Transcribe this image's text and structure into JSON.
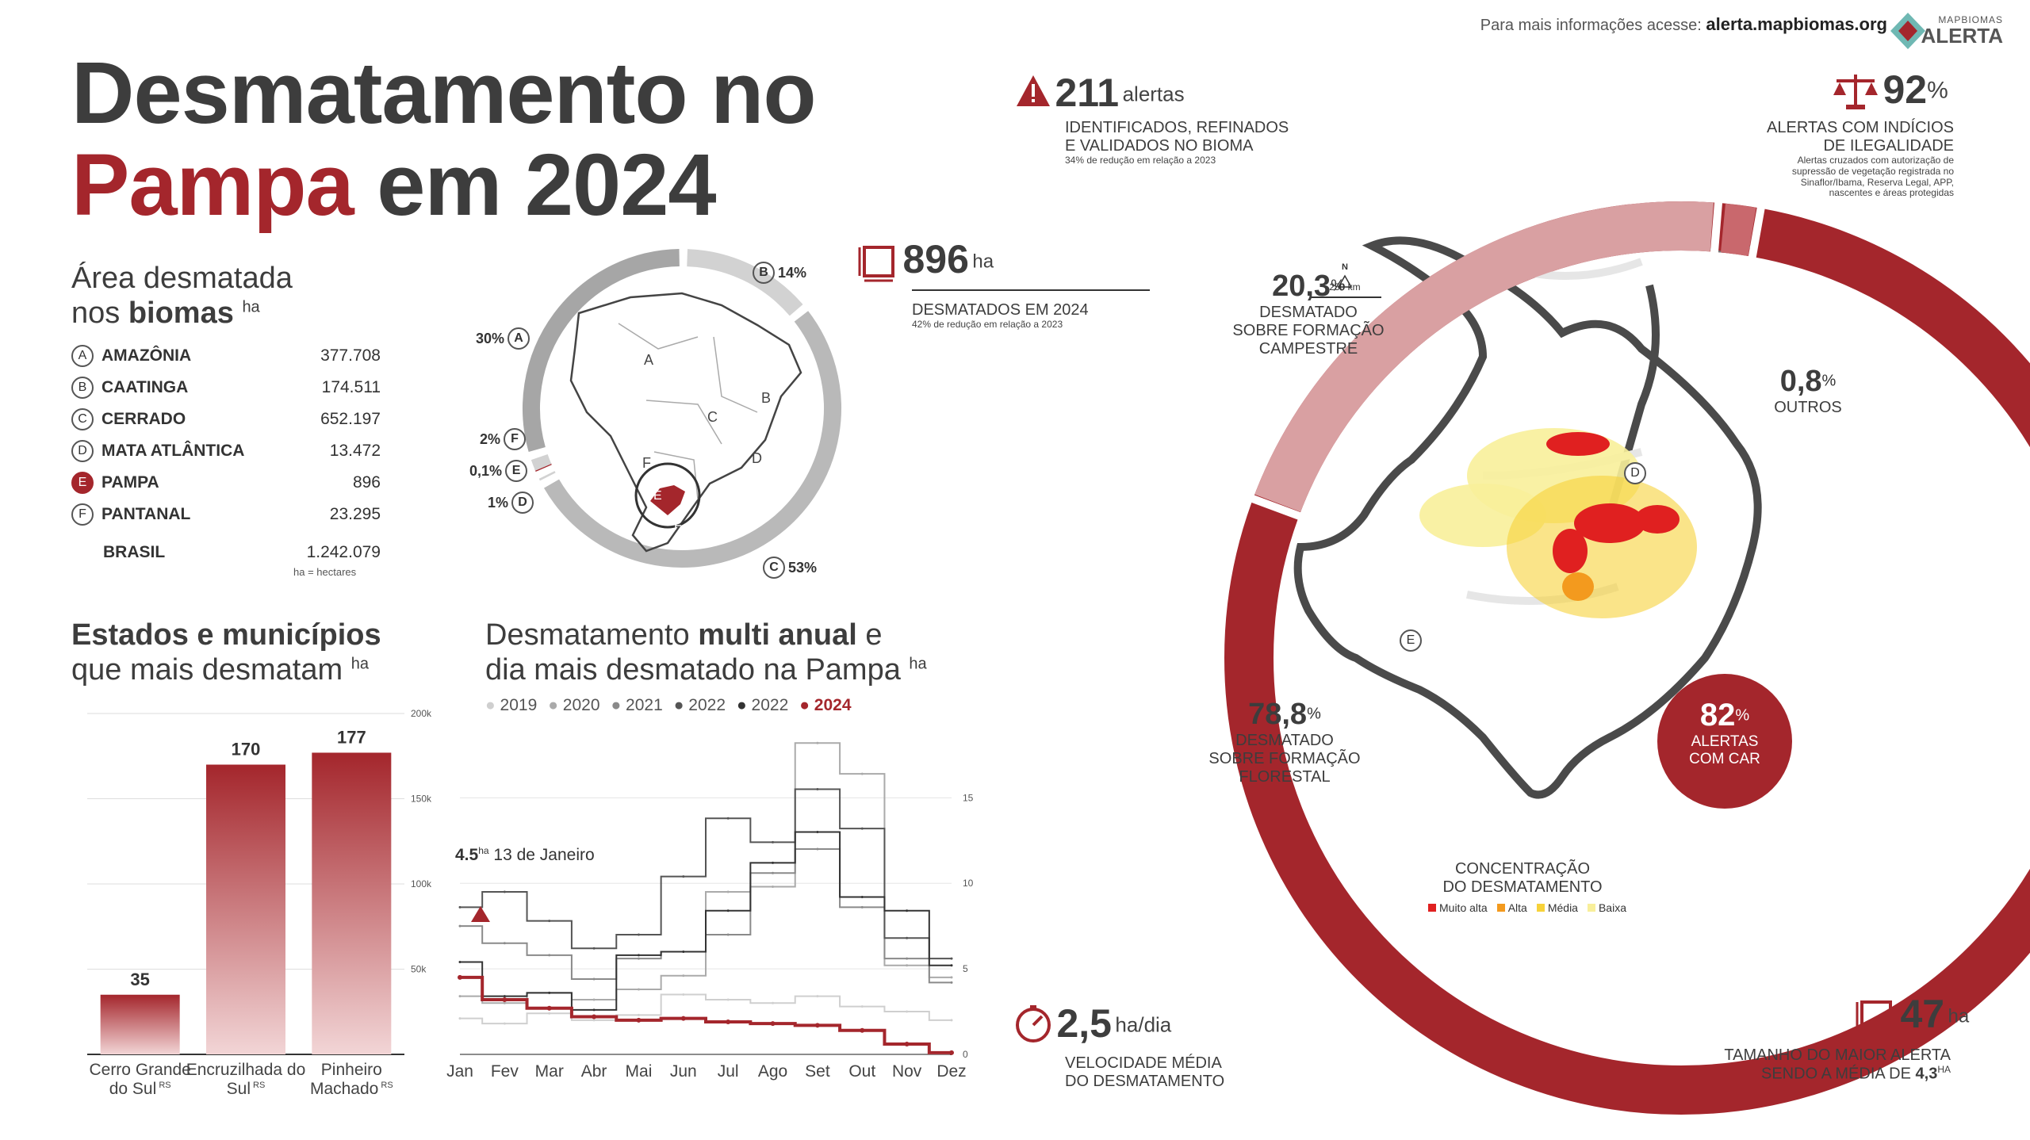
{
  "header": {
    "title_line1": "Desmatamento no",
    "title_red": "Pampa",
    "title_rest": " em 2024",
    "info_prefix": "Para mais informações acesse:",
    "info_url": "alerta.mapbiomas.org",
    "logo_top": "MAPBIOMAS",
    "logo_bottom": "ALERTA"
  },
  "biomes": {
    "heading_line1": "Área desmatada",
    "heading_line2_pre": "nos ",
    "heading_line2_bold": "biomas",
    "heading_unit": "ha",
    "rows": [
      {
        "letter": "A",
        "name": "AMAZÔNIA",
        "value": "377.708"
      },
      {
        "letter": "B",
        "name": "CAATINGA",
        "value": "174.511"
      },
      {
        "letter": "C",
        "name": "CERRADO",
        "value": "652.197"
      },
      {
        "letter": "D",
        "name": "MATA ATLÂNTICA",
        "value": "13.472"
      },
      {
        "letter": "E",
        "name": "PAMPA",
        "value": "896"
      },
      {
        "letter": "F",
        "name": "PANTANAL",
        "value": "23.295"
      }
    ],
    "total_name": "BRASIL",
    "total_value": "1.242.079",
    "note": "ha = hectares"
  },
  "donut": {
    "labels": [
      {
        "letter": "B",
        "pct": "14%"
      },
      {
        "letter": "A",
        "pct": "30%"
      },
      {
        "letter": "F",
        "pct": "2%"
      },
      {
        "letter": "E",
        "pct": "0,1%"
      },
      {
        "letter": "D",
        "pct": "1%"
      },
      {
        "letter": "C",
        "pct": "53%"
      }
    ],
    "shares": [
      {
        "letter": "A",
        "value": 30
      },
      {
        "letter": "B",
        "value": 14
      },
      {
        "letter": "C",
        "value": 53
      },
      {
        "letter": "D",
        "value": 1
      },
      {
        "letter": "E",
        "value": 0.1
      },
      {
        "letter": "F",
        "value": 2
      }
    ]
  },
  "states": {
    "heading_bold": "Estados e municípios",
    "heading_line2": "que mais desmatam",
    "heading_unit": "ha"
  },
  "multi": {
    "heading_pre": "Desmatamento ",
    "heading_bold": "multi anual",
    "heading_post": " e",
    "heading_line2": "dia mais desmatado na Pampa",
    "heading_unit": "ha",
    "annotation_value": "4.5",
    "annotation_unit": "ha",
    "annotation_date": "13 de Janeiro"
  },
  "kpis": {
    "alerts_value": "211",
    "alerts_unit": "alertas",
    "alerts_label1": "IDENTIFICADOS, REFINADOS",
    "alerts_label2": "E VALIDADOS NO BIOMA",
    "alerts_sub": "34% de redução em relação a 2023",
    "area_value": "896",
    "area_unit": "ha",
    "area_label": "DESMATADOS EM 2024",
    "area_sub": "42% de redução em relação a 2023",
    "illegal_value": "92",
    "illegal_unit": "%",
    "illegal_label1": "ALERTAS COM INDÍCIOS",
    "illegal_label2": "DE ILEGALIDADE",
    "illegal_note1": "Alertas cruzados com autorização de",
    "illegal_note2": "supressão de vegetação registrada no",
    "illegal_note3": "Sinaflor/Ibama, Reserva Legal, APP,",
    "illegal_note4": "nascentes e áreas protegidas",
    "camp_value": "20,3",
    "camp_unit": "%",
    "camp_label1": "DESMATADO",
    "camp_label2": "SOBRE FORMAÇÃO",
    "camp_label3": "CAMPESTRE",
    "outros_value": "0,8",
    "outros_unit": "%",
    "outros_label": "OUTROS",
    "flor_value": "78,8",
    "flor_unit": "%",
    "flor_label1": "DESMATADO",
    "flor_label2": "SOBRE FORMAÇÃO",
    "flor_label3": "FLORESTAL",
    "car_value": "82",
    "car_unit": "%",
    "car_label1": "ALERTAS",
    "car_label2": "COM CAR",
    "speed_value": "2,5",
    "speed_unit": "ha/dia",
    "speed_label1": "VELOCIDADE MÉDIA",
    "speed_label2": "DO DESMATAMENTO",
    "max_value": "47",
    "max_unit": "ha",
    "max_label1": "TAMANHO DO MAIOR ALERTA",
    "max_label2": "SENDO A MÉDIA DE",
    "max_avg": "4,3",
    "max_avg_unit": "ha"
  },
  "map": {
    "north": "N",
    "scale": "250 km",
    "letter_d": "D",
    "letter_e": "E",
    "conc_title1": "CONCENTRAÇÃO",
    "conc_title2": "DO DESMATAMENTO",
    "legend": [
      {
        "label": "Muito alta",
        "color": "#e02020"
      },
      {
        "label": "Alta",
        "color": "#f39a1e"
      },
      {
        "label": "Média",
        "color": "#f7d23a"
      },
      {
        "label": "Baixa",
        "color": "#f8ef9a"
      }
    ]
  },
  "colors": {
    "accent": "#a4262c",
    "light_accent": "#d9a0a2",
    "dark": "#3d3d3d"
  },
  "chart_data": [
    {
      "type": "bar",
      "categories": [
        "Cerro Grande do Sul RS",
        "Encruzilhada do Sul RS",
        "Pinheiro Machado RS"
      ],
      "values": [
        35,
        170,
        177
      ],
      "ylim": [
        0,
        200
      ],
      "y_tick_labels": [
        "50k",
        "100k",
        "150k",
        "200k"
      ]
    },
    {
      "type": "line",
      "x": [
        "Jan",
        "Fev",
        "Mar",
        "Abr",
        "Mai",
        "Jun",
        "Jul",
        "Ago",
        "Set",
        "Out",
        "Nov",
        "Dez"
      ],
      "legend": [
        "2019",
        "2020",
        "2021",
        "2022",
        "2022",
        "2024"
      ],
      "y_ticks": [
        "0",
        "5",
        "10",
        "15"
      ],
      "ylim": [
        0,
        19
      ],
      "series": [
        {
          "name": "2019",
          "values": [
            2.1,
            1.8,
            2.4,
            2.0,
            2.3,
            3.5,
            3.2,
            3.0,
            3.4,
            2.8,
            2.5,
            2.0
          ]
        },
        {
          "name": "2020",
          "values": [
            3.4,
            3.0,
            3.6,
            3.2,
            3.8,
            4.6,
            9.5,
            9.8,
            18.2,
            16.4,
            5.2,
            4.5
          ]
        },
        {
          "name": "2021",
          "values": [
            7.5,
            6.5,
            5.8,
            4.4,
            5.6,
            6.0,
            7.0,
            10.6,
            12.0,
            8.6,
            5.6,
            4.2
          ]
        },
        {
          "name": "2022",
          "values": [
            8.6,
            9.5,
            7.8,
            6.2,
            7.0,
            10.4,
            13.8,
            12.4,
            15.5,
            13.2,
            6.8,
            5.6
          ]
        },
        {
          "name": "2022",
          "values": [
            5.4,
            3.4,
            3.6,
            2.6,
            5.8,
            6.0,
            8.4,
            11.2,
            13.0,
            9.2,
            8.4,
            5.2
          ]
        },
        {
          "name": "2024",
          "values": [
            4.5,
            3.2,
            2.7,
            2.2,
            2.0,
            2.1,
            1.9,
            1.8,
            1.7,
            1.4,
            0.6,
            0.1
          ]
        }
      ]
    }
  ]
}
